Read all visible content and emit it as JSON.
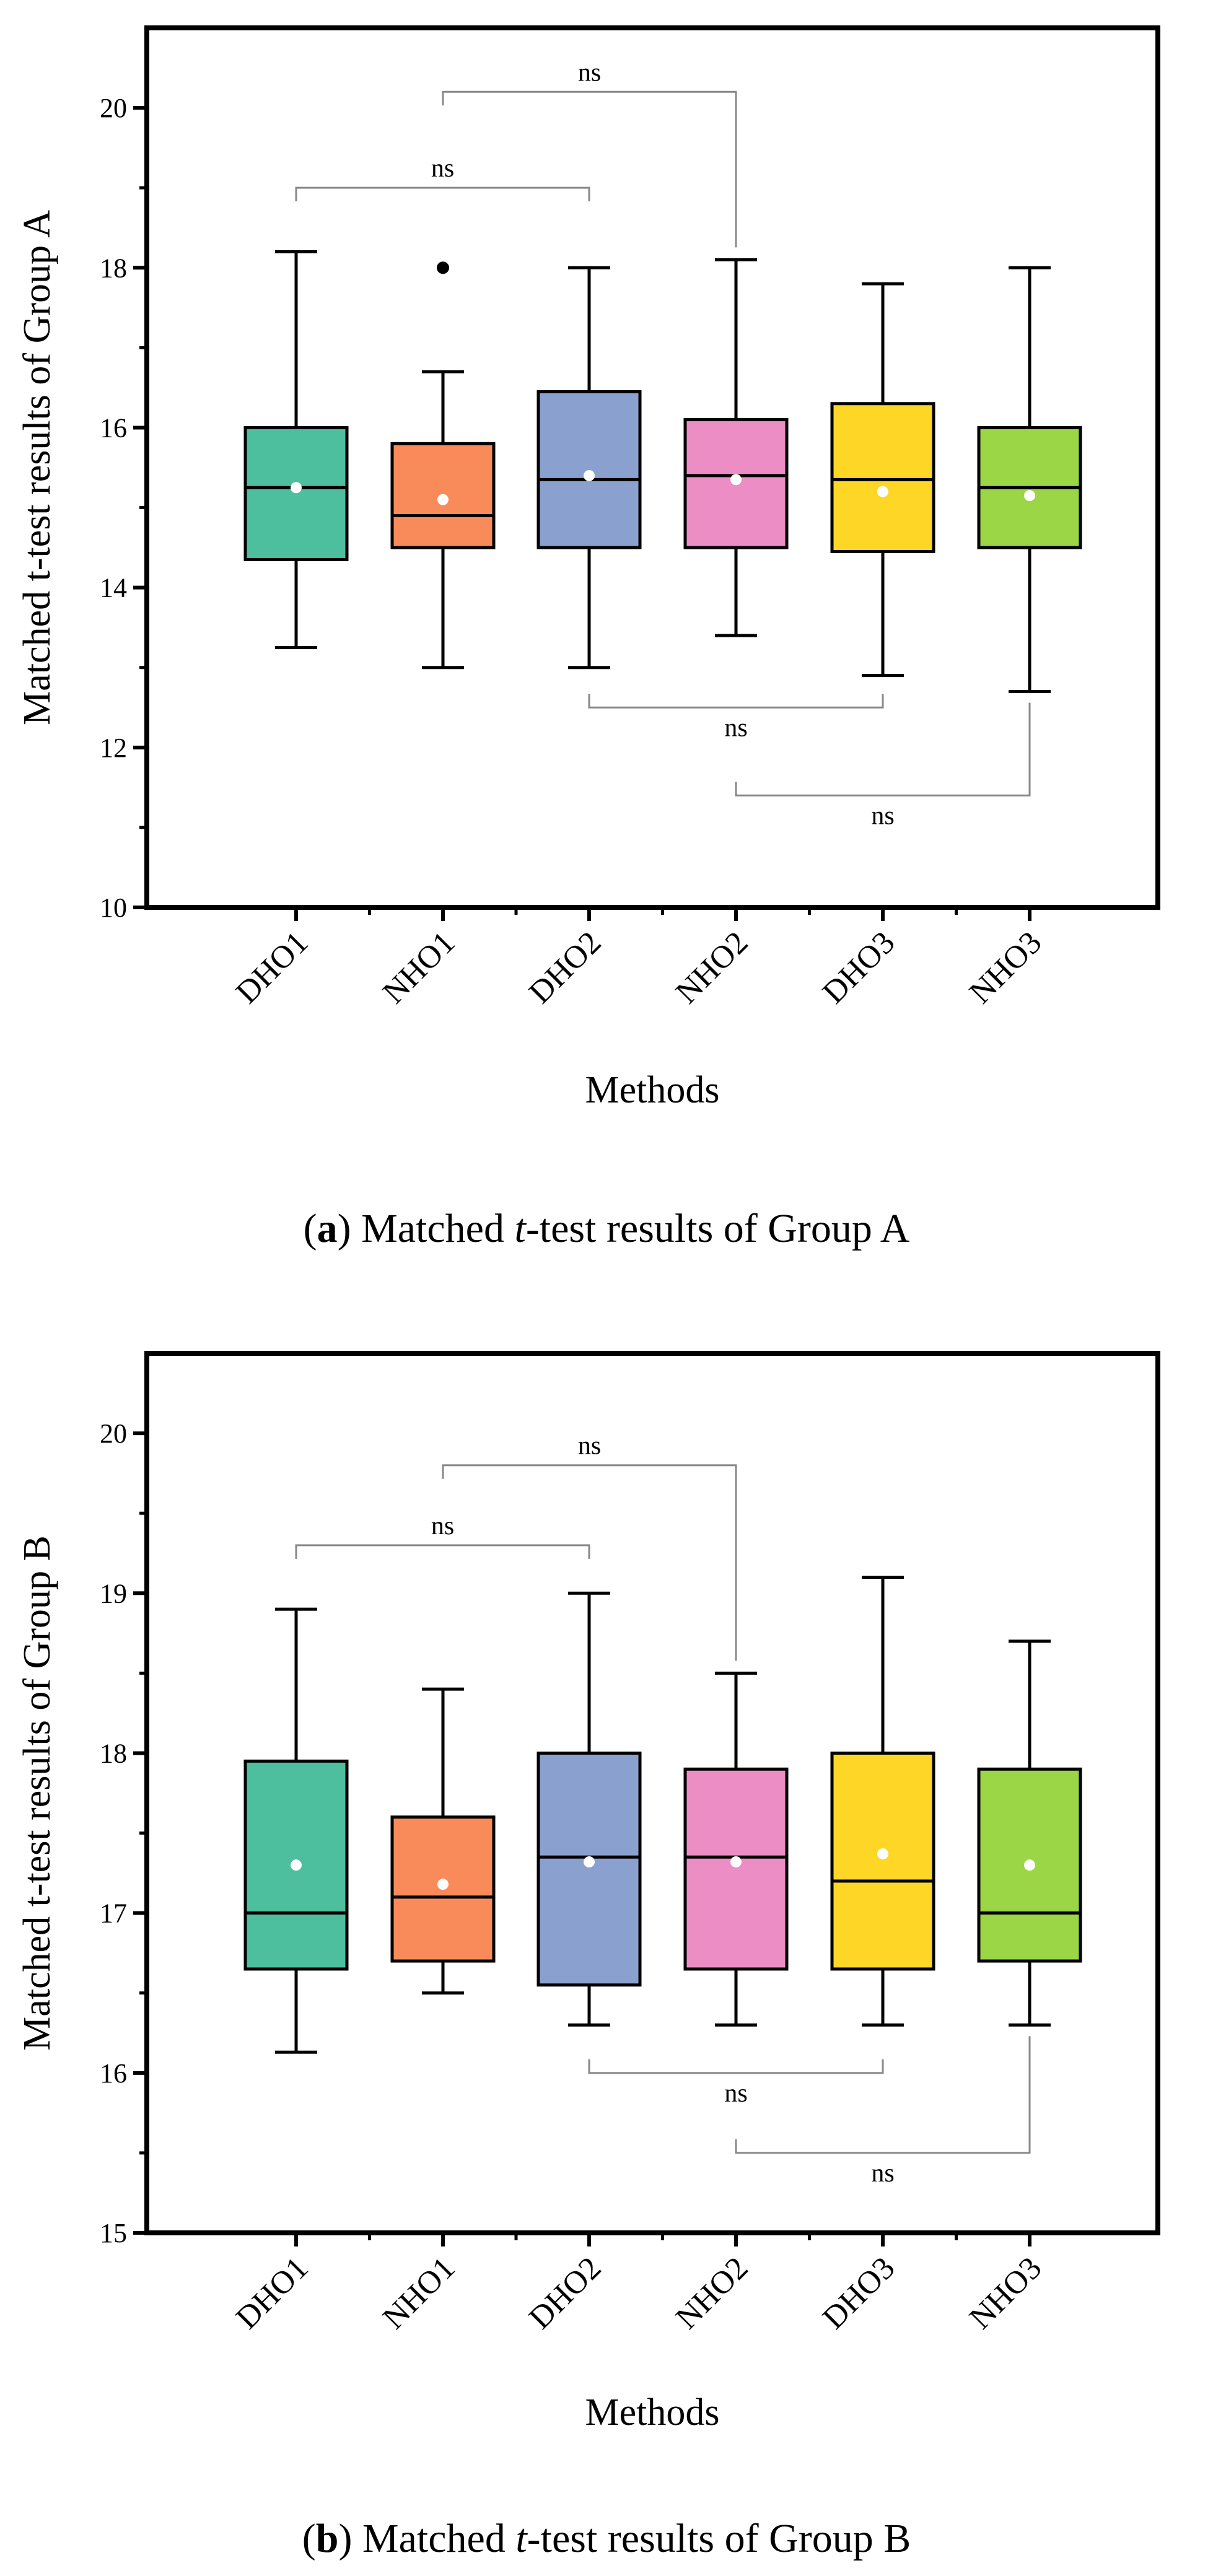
{
  "chart_data": [
    {
      "type": "box",
      "id": "a",
      "ylabel": "Matched t-test results of Group A",
      "xlabel": "Methods",
      "ylim": [
        10,
        21
      ],
      "yticks": [
        10,
        12,
        14,
        16,
        18,
        20
      ],
      "categories": [
        "DHO1",
        "NHO1",
        "DHO2",
        "NHO2",
        "DHO3",
        "NHO3"
      ],
      "colors": [
        "#4dbf9f",
        "#f98b5b",
        "#8aa1cf",
        "#ec8dc6",
        "#fdd626",
        "#9ad645"
      ],
      "boxes": [
        {
          "whisker_low": 13.25,
          "q1": 14.35,
          "median": 15.25,
          "q3": 16.0,
          "whisker_high": 18.2,
          "mean": 15.25,
          "outliers": []
        },
        {
          "whisker_low": 13.0,
          "q1": 14.5,
          "median": 14.9,
          "q3": 15.8,
          "whisker_high": 16.7,
          "mean": 15.1,
          "outliers": [
            18.0
          ]
        },
        {
          "whisker_low": 13.0,
          "q1": 14.5,
          "median": 15.35,
          "q3": 16.45,
          "whisker_high": 18.0,
          "mean": 15.4,
          "outliers": []
        },
        {
          "whisker_low": 13.4,
          "q1": 14.5,
          "median": 15.4,
          "q3": 16.1,
          "whisker_high": 18.1,
          "mean": 15.35,
          "outliers": []
        },
        {
          "whisker_low": 12.9,
          "q1": 14.45,
          "median": 15.35,
          "q3": 16.3,
          "whisker_high": 17.8,
          "mean": 15.2,
          "outliers": []
        },
        {
          "whisker_low": 12.7,
          "q1": 14.5,
          "median": 15.25,
          "q3": 16.0,
          "whisker_high": 18.0,
          "mean": 15.15,
          "outliers": []
        }
      ],
      "comparisons": [
        {
          "from": 0,
          "to": 2,
          "label": "ns",
          "side": "top",
          "y": 19.0
        },
        {
          "from": 1,
          "to": 3,
          "label": "ns",
          "side": "top",
          "y": 20.2
        },
        {
          "from": 2,
          "to": 4,
          "label": "ns",
          "side": "bottom",
          "y": 12.5
        },
        {
          "from": 3,
          "to": 5,
          "label": "ns",
          "side": "bottom",
          "y": 11.4
        }
      ],
      "caption": {
        "letter": "a",
        "pre": "Matched ",
        "italic": "t",
        "post": "-test results of Group A"
      }
    },
    {
      "type": "box",
      "id": "b",
      "ylabel": "Matched t-test results of Group B",
      "xlabel": "Methods",
      "ylim": [
        15,
        20.5
      ],
      "yticks": [
        15,
        16,
        17,
        18,
        19,
        20
      ],
      "categories": [
        "DHO1",
        "NHO1",
        "DHO2",
        "NHO2",
        "DHO3",
        "NHO3"
      ],
      "colors": [
        "#4dbf9f",
        "#f98b5b",
        "#8aa1cf",
        "#ec8dc6",
        "#fdd626",
        "#9ad645"
      ],
      "boxes": [
        {
          "whisker_low": 16.13,
          "q1": 16.65,
          "median": 17.0,
          "q3": 17.95,
          "whisker_high": 18.9,
          "mean": 17.3,
          "outliers": []
        },
        {
          "whisker_low": 16.5,
          "q1": 16.7,
          "median": 17.1,
          "q3": 17.6,
          "whisker_high": 18.4,
          "mean": 17.18,
          "outliers": []
        },
        {
          "whisker_low": 16.3,
          "q1": 16.55,
          "median": 17.35,
          "q3": 18.0,
          "whisker_high": 19.0,
          "mean": 17.32,
          "outliers": []
        },
        {
          "whisker_low": 16.3,
          "q1": 16.65,
          "median": 17.35,
          "q3": 17.9,
          "whisker_high": 18.5,
          "mean": 17.32,
          "outliers": []
        },
        {
          "whisker_low": 16.3,
          "q1": 16.65,
          "median": 17.2,
          "q3": 18.0,
          "whisker_high": 19.1,
          "mean": 17.37,
          "outliers": []
        },
        {
          "whisker_low": 16.3,
          "q1": 16.7,
          "median": 17.0,
          "q3": 17.9,
          "whisker_high": 18.7,
          "mean": 17.3,
          "outliers": []
        }
      ],
      "comparisons": [
        {
          "from": 0,
          "to": 2,
          "label": "ns",
          "side": "top",
          "y": 19.3
        },
        {
          "from": 1,
          "to": 3,
          "label": "ns",
          "side": "top",
          "y": 19.8
        },
        {
          "from": 2,
          "to": 4,
          "label": "ns",
          "side": "bottom",
          "y": 16.0
        },
        {
          "from": 3,
          "to": 5,
          "label": "ns",
          "side": "bottom",
          "y": 15.5
        }
      ],
      "caption": {
        "letter": "b",
        "pre": "Matched ",
        "italic": "t",
        "post": "-test results of Group B"
      }
    }
  ]
}
